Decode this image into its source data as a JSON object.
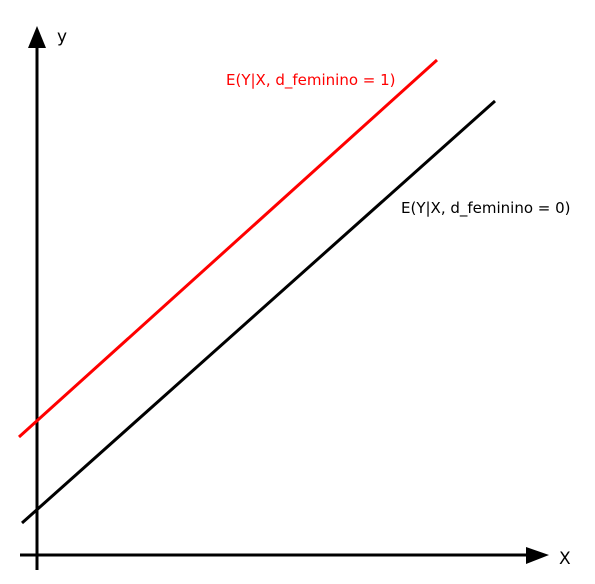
{
  "diagram": {
    "colors": {
      "axis": "#000000",
      "line_female": "#ff0000",
      "line_male": "#000000",
      "background": "#ffffff"
    },
    "axes": {
      "y_label": "y",
      "x_label": "X"
    },
    "lines": {
      "female": {
        "label": "E(Y|X, d_feminino = 1)"
      },
      "male": {
        "label": "E(Y|X, d_feminino = 0)"
      }
    }
  }
}
